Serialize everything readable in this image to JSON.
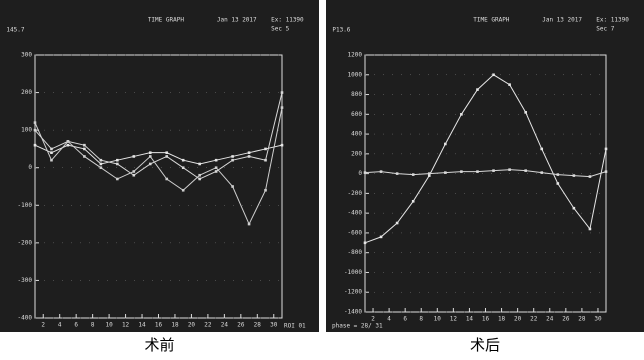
{
  "chart_data": [
    {
      "type": "line",
      "title": "TIME GRAPH",
      "header": [
        "Jan 13 2017",
        "Ex: 11390",
        "Sec 5",
        "145.7"
      ],
      "footer": "ROI 01",
      "caption": "术前",
      "x": [
        1,
        3,
        5,
        7,
        9,
        11,
        13,
        15,
        17,
        19,
        21,
        23,
        25,
        27,
        29,
        31
      ],
      "xlim": [
        1,
        31
      ],
      "xticks": [
        2,
        4,
        6,
        8,
        10,
        12,
        14,
        16,
        18,
        20,
        22,
        24,
        26,
        28,
        30
      ],
      "ylim": [
        -400,
        300
      ],
      "yticks": [
        300,
        200,
        100,
        0,
        -100,
        -200,
        -300,
        -400
      ],
      "series": [
        {
          "color": "#e6e6e6",
          "values": [
            60,
            40,
            60,
            50,
            10,
            20,
            30,
            40,
            40,
            20,
            10,
            20,
            30,
            40,
            50,
            60
          ]
        },
        {
          "color": "#d8d8d8",
          "values": [
            100,
            50,
            70,
            60,
            20,
            10,
            -20,
            10,
            30,
            0,
            -30,
            -10,
            20,
            30,
            20,
            200
          ]
        },
        {
          "color": "#cfcfcf",
          "values": [
            120,
            20,
            70,
            30,
            0,
            -30,
            -10,
            30,
            -30,
            -60,
            -20,
            0,
            -50,
            -150,
            -60,
            160
          ]
        }
      ]
    },
    {
      "type": "line",
      "title": "TIME GRAPH",
      "header": [
        "Jan 13 2017",
        "Ex: 11390",
        "Sec 7",
        "P13.6"
      ],
      "footer": "phase = 28/ 31",
      "caption": "术后",
      "x": [
        1,
        3,
        5,
        7,
        9,
        11,
        13,
        15,
        17,
        19,
        21,
        23,
        25,
        27,
        29,
        31
      ],
      "xlim": [
        1,
        31
      ],
      "xticks": [
        2,
        4,
        6,
        8,
        10,
        12,
        14,
        16,
        18,
        20,
        22,
        24,
        26,
        28,
        30
      ],
      "ylim": [
        -1400,
        1200
      ],
      "yticks": [
        1200,
        1000,
        800,
        600,
        400,
        200,
        0,
        -200,
        -400,
        -600,
        -800,
        -1000,
        -1200,
        -1400
      ],
      "series": [
        {
          "color": "#e6e6e6",
          "values": [
            -700,
            -640,
            -500,
            -280,
            -20,
            300,
            600,
            850,
            1000,
            900,
            620,
            250,
            -100,
            -350,
            -560,
            250
          ]
        },
        {
          "color": "#d8d8d8",
          "values": [
            10,
            20,
            0,
            -10,
            0,
            10,
            20,
            20,
            30,
            40,
            30,
            10,
            -10,
            -20,
            -30,
            20
          ]
        }
      ]
    }
  ]
}
